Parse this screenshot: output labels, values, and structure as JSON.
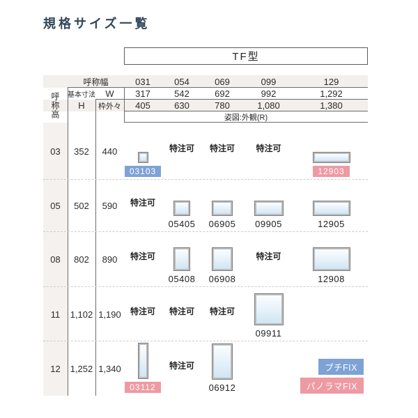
{
  "title": "規格サイズ一覧",
  "type_box": {
    "label": "TF型"
  },
  "header": {
    "nominal_width": "呼称幅",
    "nominal_height": "呼称高",
    "basic_dimension": "基本寸法",
    "w": "W",
    "h": "H",
    "frame_outside": "枠外々",
    "view_note": "姿図:外観(R)"
  },
  "custom_order_label": "特注可",
  "colors": {
    "blue": "#7ea2d4",
    "pink": "#ee9aa3"
  },
  "columns": [
    {
      "code": "031",
      "w": "317",
      "frame": "405"
    },
    {
      "code": "054",
      "w": "542",
      "frame": "630"
    },
    {
      "code": "069",
      "w": "692",
      "frame": "780"
    },
    {
      "code": "099",
      "w": "992",
      "frame": "1,080"
    },
    {
      "code": "129",
      "w": "1,292",
      "frame": "1,380"
    }
  ],
  "rows": [
    {
      "code": "03",
      "h": "352",
      "frame": "440",
      "cells": [
        {
          "type": "window",
          "code": "03103",
          "badge": "blue"
        },
        {
          "type": "custom"
        },
        {
          "type": "custom"
        },
        {
          "type": "custom"
        },
        {
          "type": "window",
          "code": "12903",
          "badge": "pink"
        }
      ]
    },
    {
      "code": "05",
      "h": "502",
      "frame": "590",
      "cells": [
        {
          "type": "custom"
        },
        {
          "type": "window",
          "code": "05405"
        },
        {
          "type": "window",
          "code": "06905"
        },
        {
          "type": "window",
          "code": "09905"
        },
        {
          "type": "window",
          "code": "12905"
        }
      ]
    },
    {
      "code": "08",
      "h": "802",
      "frame": "890",
      "cells": [
        {
          "type": "custom"
        },
        {
          "type": "window",
          "code": "05408"
        },
        {
          "type": "window",
          "code": "06908"
        },
        {
          "type": "custom"
        },
        {
          "type": "window",
          "code": "12908"
        }
      ]
    },
    {
      "code": "11",
      "h": "1,102",
      "frame": "1,190",
      "cells": [
        {
          "type": "custom"
        },
        {
          "type": "custom"
        },
        {
          "type": "custom"
        },
        {
          "type": "window",
          "code": "09911"
        },
        {
          "type": "empty"
        }
      ]
    },
    {
      "code": "12",
      "h": "1,252",
      "frame": "1,340",
      "cells": [
        {
          "type": "window",
          "code": "03112",
          "badge": "pink"
        },
        {
          "type": "custom"
        },
        {
          "type": "window",
          "code": "06912"
        },
        {
          "type": "empty"
        },
        {
          "type": "legend"
        }
      ]
    }
  ],
  "legend": [
    {
      "label": "プチFIX",
      "color": "blue"
    },
    {
      "label": "パノラマFIX",
      "color": "pink"
    }
  ]
}
